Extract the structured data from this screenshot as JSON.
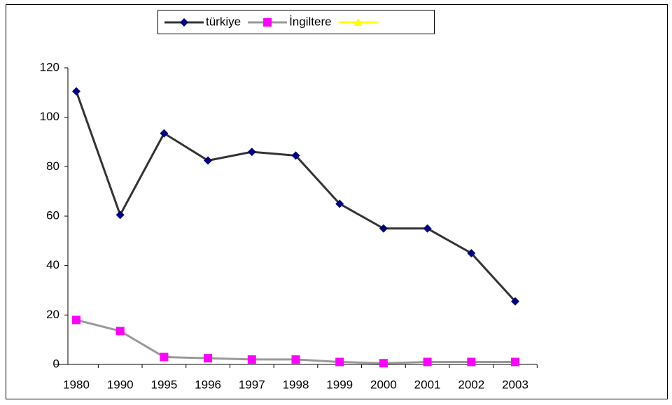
{
  "chart_data": {
    "type": "line",
    "categories": [
      "1980",
      "1990",
      "1995",
      "1996",
      "1997",
      "1998",
      "1999",
      "2000",
      "2001",
      "2002",
      "2003"
    ],
    "series": [
      {
        "name": "türkiye",
        "color": "#333333",
        "marker_color": "#000080",
        "marker": "diamond",
        "values": [
          110.5,
          60.5,
          93.5,
          82.5,
          86,
          84.5,
          65,
          55,
          55,
          45,
          25.5
        ]
      },
      {
        "name": "İngiltere",
        "color": "#999999",
        "marker_color": "#ff00ff",
        "marker": "square",
        "values": [
          18,
          13.5,
          3,
          2.5,
          2,
          2,
          1,
          0.5,
          1,
          1,
          1
        ]
      },
      {
        "color": "#ffff00",
        "marker_color": "#ffff00",
        "marker": "triangle",
        "values": [
          null,
          null,
          null,
          null,
          null,
          null,
          null,
          null,
          null,
          null,
          null
        ]
      }
    ],
    "ylim": [
      0,
      120
    ],
    "yticks": [
      0,
      20,
      40,
      60,
      80,
      100,
      120
    ],
    "grid": false,
    "legend": "top"
  }
}
